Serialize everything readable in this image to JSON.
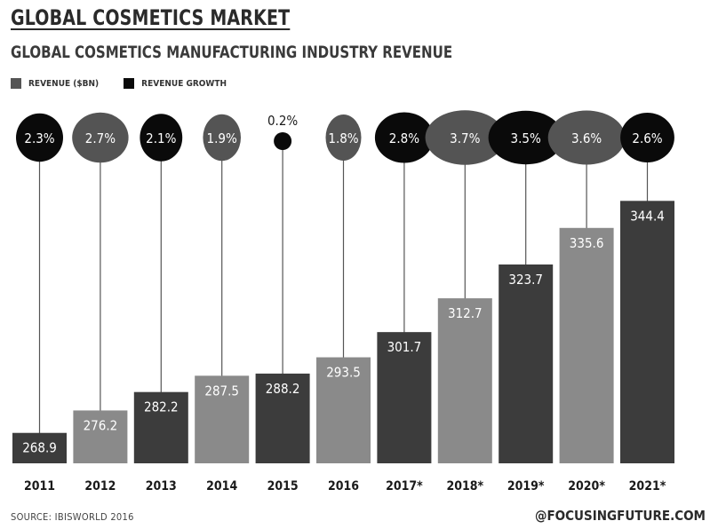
{
  "header": {
    "title": "GLOBAL COSMETICS MARKET",
    "subtitle": "GLOBAL COSMETICS MANUFACTURING INDUSTRY REVENUE"
  },
  "legend": {
    "revenue_label": "REVENUE ($BN)",
    "growth_label": "REVENUE GROWTH"
  },
  "footer": {
    "source": "SOURCE: IBISWORLD 2016",
    "handle": "@FOCUSINGFUTURE.COM"
  },
  "colors": {
    "dark": "#3c3c3c",
    "light": "#8a8a8a",
    "black": "#0a0a0a",
    "bubble_grey": "#545454"
  },
  "chart_data": {
    "type": "bar",
    "categories": [
      "2011",
      "2012",
      "2013",
      "2014",
      "2015",
      "2016",
      "2017*",
      "2018*",
      "2019*",
      "2020*",
      "2021*"
    ],
    "series": [
      {
        "name": "REVENUE ($BN)",
        "values": [
          268.9,
          276.2,
          282.2,
          287.5,
          288.2,
          293.5,
          301.7,
          312.7,
          323.7,
          335.6,
          344.4
        ]
      },
      {
        "name": "REVENUE GROWTH",
        "values": [
          "2.3%",
          "2.7%",
          "2.1%",
          "1.9%",
          "0.2%",
          "1.8%",
          "2.8%",
          "3.7%",
          "3.5%",
          "3.6%",
          "2.6%"
        ]
      }
    ],
    "growth_numeric": [
      2.3,
      2.7,
      2.1,
      1.9,
      0.2,
      1.8,
      2.8,
      3.7,
      3.5,
      3.6,
      2.6
    ],
    "bar_shades": [
      "dark",
      "light",
      "dark",
      "light",
      "dark",
      "light",
      "dark",
      "light",
      "dark",
      "light",
      "dark"
    ],
    "bubble_shades": [
      "black",
      "grey",
      "black",
      "grey",
      "black",
      "grey",
      "black",
      "grey",
      "black",
      "grey",
      "black"
    ],
    "ylim": [
      259,
      352
    ],
    "grid": false,
    "legend_position": "top-left"
  }
}
